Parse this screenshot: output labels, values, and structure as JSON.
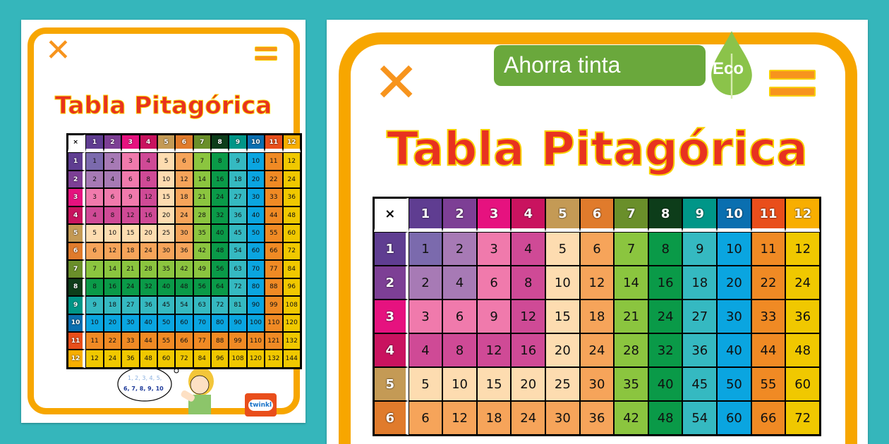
{
  "title": "Tabla Pitagórica",
  "times_symbol": "×",
  "header_numbers": [
    "1",
    "2",
    "3",
    "4",
    "5",
    "6",
    "7",
    "8",
    "9",
    "10",
    "11",
    "12"
  ],
  "header_colors": [
    "#5f3d91",
    "#7d3f95",
    "#e6127f",
    "#c9135f",
    "#c49a55",
    "#e07b2c",
    "#6a8f2a",
    "#0d3d1a",
    "#009688",
    "#0a6fb0",
    "#e94e1b",
    "#f8ae00"
  ],
  "cell_colors": [
    "#7b6aad",
    "#a77ab5",
    "#f07aac",
    "#cf4a96",
    "#fddcb0",
    "#f6a45a",
    "#8bc53f",
    "#0a9a48",
    "#35b9c1",
    "#0aa5e0",
    "#f08a24",
    "#f0c800"
  ],
  "rows": [
    [
      1,
      2,
      3,
      4,
      5,
      6,
      7,
      8,
      9,
      10,
      11,
      12
    ],
    [
      2,
      4,
      6,
      8,
      10,
      12,
      14,
      16,
      18,
      20,
      22,
      24
    ],
    [
      3,
      6,
      9,
      12,
      15,
      18,
      21,
      24,
      27,
      30,
      33,
      36
    ],
    [
      4,
      8,
      12,
      16,
      20,
      24,
      28,
      32,
      36,
      40,
      44,
      48
    ],
    [
      5,
      10,
      15,
      20,
      25,
      30,
      35,
      40,
      45,
      50,
      55,
      60
    ],
    [
      6,
      12,
      18,
      24,
      30,
      36,
      42,
      48,
      54,
      60,
      66,
      72
    ],
    [
      7,
      14,
      21,
      28,
      35,
      42,
      49,
      56,
      63,
      70,
      77,
      84
    ],
    [
      8,
      16,
      24,
      32,
      40,
      48,
      56,
      64,
      72,
      80,
      88,
      96
    ],
    [
      9,
      18,
      27,
      36,
      45,
      54,
      63,
      72,
      81,
      90,
      99,
      108
    ],
    [
      10,
      20,
      30,
      40,
      50,
      60,
      70,
      80,
      90,
      100,
      110,
      120
    ],
    [
      11,
      22,
      33,
      44,
      55,
      66,
      77,
      88,
      99,
      110,
      121,
      132
    ],
    [
      12,
      24,
      36,
      48,
      60,
      72,
      84,
      96,
      108,
      120,
      132,
      144
    ]
  ],
  "thought_bubble": {
    "line1": "1, 2, 3, 4, 5,",
    "line2": "6, 7, 8, 9, 10"
  },
  "logo": "twinkl",
  "badge": {
    "label": "Ahorra tinta",
    "eco": "Eco",
    "color": "#6aa83c"
  }
}
